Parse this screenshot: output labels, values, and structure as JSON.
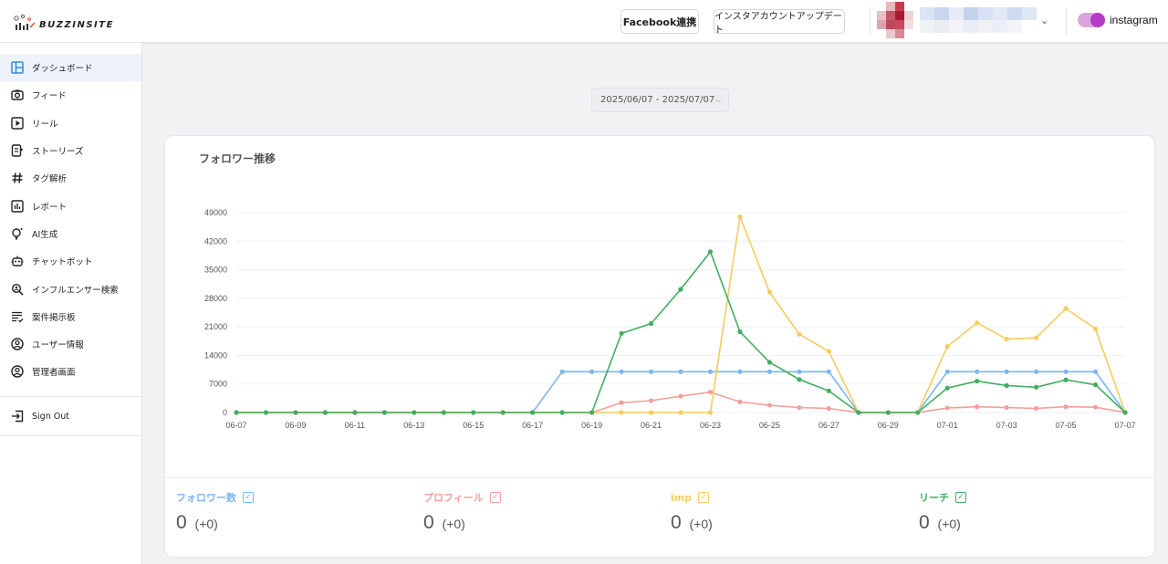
{
  "header": {
    "logo_text": "BUZZINSITE",
    "facebook_button": "Facebook連携",
    "instagram_update_button": "インスタアカウントアップデート",
    "platform_label": "instagram"
  },
  "sidebar": {
    "items": [
      {
        "label": "ダッシュボード",
        "icon": "dashboard-icon",
        "active": true
      },
      {
        "label": "フィード",
        "icon": "camera-icon"
      },
      {
        "label": "リール",
        "icon": "play-icon"
      },
      {
        "label": "ストーリーズ",
        "icon": "stories-icon"
      },
      {
        "label": "タグ解析",
        "icon": "hashtag-icon"
      },
      {
        "label": "レポート",
        "icon": "report-icon"
      },
      {
        "label": "AI生成",
        "icon": "lightbulb-icon"
      },
      {
        "label": "チャットボット",
        "icon": "robot-icon"
      },
      {
        "label": "インフルエンサー検索",
        "icon": "search-person-icon"
      },
      {
        "label": "案件掲示板",
        "icon": "list-check-icon"
      },
      {
        "label": "ユーザー情報",
        "icon": "user-circle-icon"
      },
      {
        "label": "管理者画面",
        "icon": "admin-circle-icon"
      }
    ],
    "signout_label": "Sign Out"
  },
  "date_range": "2025/06/07 - 2025/07/07",
  "card_title": "フォロワー推移",
  "metrics": [
    {
      "label": "フォロワー数",
      "value": "0",
      "delta": "(+0)",
      "color": "#7db6ef"
    },
    {
      "label": "プロフィール",
      "value": "0",
      "delta": "(+0)",
      "color": "#f1a09c"
    },
    {
      "label": "imp",
      "value": "0",
      "delta": "(+0)",
      "color": "#f5cc5e"
    },
    {
      "label": "リーチ",
      "value": "0",
      "delta": "(+0)",
      "color": "#3fae5f"
    }
  ],
  "chart_data": {
    "type": "line",
    "x": [
      "06-07",
      "06-08",
      "06-09",
      "06-10",
      "06-11",
      "06-12",
      "06-13",
      "06-14",
      "06-15",
      "06-16",
      "06-17",
      "06-18",
      "06-19",
      "06-20",
      "06-21",
      "06-22",
      "06-23",
      "06-24",
      "06-25",
      "06-26",
      "06-27",
      "06-28",
      "06-29",
      "06-30",
      "07-01",
      "07-02",
      "07-03",
      "07-04",
      "07-05",
      "07-06",
      "07-07"
    ],
    "x_tick_labels": [
      "06-07",
      "06-09",
      "06-11",
      "06-13",
      "06-15",
      "06-17",
      "06-19",
      "06-21",
      "06-23",
      "06-25",
      "06-27",
      "06-29",
      "07-01",
      "07-03",
      "07-05",
      "07-07"
    ],
    "y_ticks": [
      0,
      7000,
      14000,
      21000,
      28000,
      35000,
      42000,
      49000
    ],
    "ylim": [
      0,
      49000
    ],
    "grid": true,
    "series": [
      {
        "name": "フォロワー数",
        "color": "#7db6ef",
        "values": [
          0,
          0,
          0,
          0,
          0,
          0,
          0,
          0,
          0,
          0,
          0,
          10000,
          10000,
          10000,
          10000,
          10000,
          10000,
          10000,
          10000,
          10000,
          10000,
          0,
          0,
          0,
          10000,
          10000,
          10000,
          10000,
          10000,
          10000,
          0
        ]
      },
      {
        "name": "プロフィール",
        "color": "#f1a09c",
        "values": [
          0,
          0,
          0,
          0,
          0,
          0,
          0,
          0,
          0,
          0,
          0,
          0,
          0,
          2400,
          2900,
          4000,
          5000,
          2600,
          1800,
          1200,
          1000,
          0,
          0,
          0,
          1100,
          1400,
          1200,
          1000,
          1400,
          1300,
          0
        ]
      },
      {
        "name": "imp",
        "color": "#f5cc5e",
        "values": [
          0,
          0,
          0,
          0,
          0,
          0,
          0,
          0,
          0,
          0,
          0,
          0,
          0,
          0,
          0,
          0,
          0,
          48000,
          29500,
          19200,
          15000,
          0,
          0,
          0,
          16200,
          22000,
          18000,
          18300,
          25500,
          20500,
          0
        ]
      },
      {
        "name": "リーチ",
        "color": "#3fae5f",
        "values": [
          0,
          0,
          0,
          0,
          0,
          0,
          0,
          0,
          0,
          0,
          0,
          0,
          0,
          19400,
          21800,
          30200,
          39400,
          19800,
          12300,
          8100,
          5300,
          0,
          0,
          0,
          6000,
          7700,
          6600,
          6200,
          8000,
          6800,
          0
        ]
      }
    ]
  }
}
